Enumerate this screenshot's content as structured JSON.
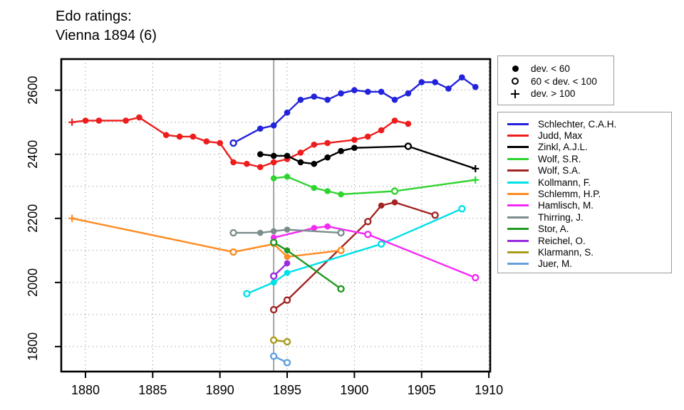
{
  "title": {
    "line1": "Edo ratings:",
    "line2": "Vienna 1894 (6)"
  },
  "chart_data": {
    "type": "line",
    "title": "Edo ratings: Vienna 1894 (6)",
    "xlabel": "",
    "ylabel": "",
    "xlim": [
      1878.2,
      1910.1
    ],
    "ylim": [
      1722,
      2697
    ],
    "x_ticks": [
      1880,
      1885,
      1890,
      1895,
      1900,
      1905,
      1910
    ],
    "y_ticks": [
      1800,
      2000,
      2200,
      2400,
      2600
    ],
    "x_gridlines": [
      1880,
      1885,
      1890,
      1895,
      1900,
      1905,
      1910
    ],
    "y_gridlines": [
      1800,
      1900,
      2000,
      2100,
      2200,
      2300,
      2400,
      2500,
      2600
    ],
    "grid": "dotted",
    "event_line": {
      "x": 1894,
      "color": "#9a9a9a"
    },
    "legend_position": "right-outside",
    "marker_legend": [
      {
        "marker": "filled",
        "label": "dev. < 60"
      },
      {
        "marker": "open",
        "label": "60 < dev. < 100"
      },
      {
        "marker": "plus",
        "label": "dev. > 100"
      }
    ],
    "series": [
      {
        "name": "Schlechter, C.A.H.",
        "color": "#2222dc",
        "points": [
          {
            "x": 1891,
            "y": 2435,
            "m": "open"
          },
          {
            "x": 1893,
            "y": 2480,
            "m": "filled"
          },
          {
            "x": 1894,
            "y": 2490,
            "m": "filled"
          },
          {
            "x": 1895,
            "y": 2530,
            "m": "filled"
          },
          {
            "x": 1896,
            "y": 2570,
            "m": "filled"
          },
          {
            "x": 1897,
            "y": 2580,
            "m": "filled"
          },
          {
            "x": 1898,
            "y": 2570,
            "m": "filled"
          },
          {
            "x": 1899,
            "y": 2590,
            "m": "filled"
          },
          {
            "x": 1900,
            "y": 2600,
            "m": "filled"
          },
          {
            "x": 1901,
            "y": 2595,
            "m": "filled"
          },
          {
            "x": 1902,
            "y": 2595,
            "m": "filled"
          },
          {
            "x": 1903,
            "y": 2570,
            "m": "filled"
          },
          {
            "x": 1904,
            "y": 2590,
            "m": "filled"
          },
          {
            "x": 1905,
            "y": 2625,
            "m": "filled"
          },
          {
            "x": 1906,
            "y": 2625,
            "m": "filled"
          },
          {
            "x": 1907,
            "y": 2605,
            "m": "filled"
          },
          {
            "x": 1908,
            "y": 2640,
            "m": "filled"
          },
          {
            "x": 1909,
            "y": 2610,
            "m": "filled"
          }
        ]
      },
      {
        "name": "Judd, Max",
        "color": "#ee1c1c",
        "points": [
          {
            "x": 1879,
            "y": 2500,
            "m": "plus"
          },
          {
            "x": 1880,
            "y": 2505,
            "m": "filled"
          },
          {
            "x": 1881,
            "y": 2505,
            "m": "filled"
          },
          {
            "x": 1883,
            "y": 2505,
            "m": "filled"
          },
          {
            "x": 1884,
            "y": 2515,
            "m": "filled"
          },
          {
            "x": 1886,
            "y": 2460,
            "m": "filled"
          },
          {
            "x": 1887,
            "y": 2455,
            "m": "filled"
          },
          {
            "x": 1888,
            "y": 2455,
            "m": "filled"
          },
          {
            "x": 1889,
            "y": 2440,
            "m": "filled"
          },
          {
            "x": 1890,
            "y": 2435,
            "m": "filled"
          },
          {
            "x": 1891,
            "y": 2375,
            "m": "filled"
          },
          {
            "x": 1892,
            "y": 2370,
            "m": "filled"
          },
          {
            "x": 1893,
            "y": 2360,
            "m": "filled"
          },
          {
            "x": 1894,
            "y": 2375,
            "m": "filled"
          },
          {
            "x": 1895,
            "y": 2385,
            "m": "filled"
          },
          {
            "x": 1896,
            "y": 2405,
            "m": "filled"
          },
          {
            "x": 1897,
            "y": 2430,
            "m": "filled"
          },
          {
            "x": 1898,
            "y": 2435,
            "m": "filled"
          },
          {
            "x": 1900,
            "y": 2445,
            "m": "filled"
          },
          {
            "x": 1901,
            "y": 2455,
            "m": "filled"
          },
          {
            "x": 1902,
            "y": 2475,
            "m": "filled"
          },
          {
            "x": 1903,
            "y": 2505,
            "m": "filled"
          },
          {
            "x": 1904,
            "y": 2495,
            "m": "filled"
          }
        ]
      },
      {
        "name": "Zinkl, A.J.L.",
        "color": "#000000",
        "points": [
          {
            "x": 1893,
            "y": 2400,
            "m": "filled"
          },
          {
            "x": 1894,
            "y": 2395,
            "m": "filled"
          },
          {
            "x": 1895,
            "y": 2395,
            "m": "filled"
          },
          {
            "x": 1896,
            "y": 2375,
            "m": "filled"
          },
          {
            "x": 1897,
            "y": 2370,
            "m": "filled"
          },
          {
            "x": 1898,
            "y": 2390,
            "m": "filled"
          },
          {
            "x": 1899,
            "y": 2410,
            "m": "filled"
          },
          {
            "x": 1900,
            "y": 2420,
            "m": "filled"
          },
          {
            "x": 1904,
            "y": 2425,
            "m": "open"
          },
          {
            "x": 1909,
            "y": 2355,
            "m": "plus"
          }
        ]
      },
      {
        "name": "Wolf, S.R.",
        "color": "#2fd42f",
        "points": [
          {
            "x": 1894,
            "y": 2325,
            "m": "filled"
          },
          {
            "x": 1895,
            "y": 2330,
            "m": "filled"
          },
          {
            "x": 1897,
            "y": 2295,
            "m": "filled"
          },
          {
            "x": 1898,
            "y": 2285,
            "m": "filled"
          },
          {
            "x": 1899,
            "y": 2275,
            "m": "filled"
          },
          {
            "x": 1903,
            "y": 2285,
            "m": "open"
          },
          {
            "x": 1909,
            "y": 2320,
            "m": "plus"
          }
        ]
      },
      {
        "name": "Wolf, S.A.",
        "color": "#a22424",
        "points": [
          {
            "x": 1894,
            "y": 1915,
            "m": "open"
          },
          {
            "x": 1895,
            "y": 1945,
            "m": "open"
          },
          {
            "x": 1901,
            "y": 2190,
            "m": "open"
          },
          {
            "x": 1902,
            "y": 2240,
            "m": "filled"
          },
          {
            "x": 1903,
            "y": 2250,
            "m": "filled"
          },
          {
            "x": 1906,
            "y": 2210,
            "m": "open"
          }
        ]
      },
      {
        "name": "Kollmann, F.",
        "color": "#00e0e8",
        "points": [
          {
            "x": 1892,
            "y": 1965,
            "m": "open"
          },
          {
            "x": 1894,
            "y": 2000,
            "m": "filled"
          },
          {
            "x": 1895,
            "y": 2030,
            "m": "filled"
          },
          {
            "x": 1902,
            "y": 2120,
            "m": "open"
          },
          {
            "x": 1908,
            "y": 2230,
            "m": "open"
          }
        ]
      },
      {
        "name": "Schlemm, H.P.",
        "color": "#ff8a1e",
        "points": [
          {
            "x": 1879,
            "y": 2200,
            "m": "plus"
          },
          {
            "x": 1891,
            "y": 2095,
            "m": "open"
          },
          {
            "x": 1894,
            "y": 2120,
            "m": "filled"
          },
          {
            "x": 1895,
            "y": 2080,
            "m": "filled"
          },
          {
            "x": 1899,
            "y": 2100,
            "m": "open"
          }
        ]
      },
      {
        "name": "Hamlisch, M.",
        "color": "#f42af4",
        "points": [
          {
            "x": 1894,
            "y": 2140,
            "m": "filled"
          },
          {
            "x": 1897,
            "y": 2170,
            "m": "filled"
          },
          {
            "x": 1898,
            "y": 2175,
            "m": "filled"
          },
          {
            "x": 1901,
            "y": 2150,
            "m": "open"
          },
          {
            "x": 1909,
            "y": 2015,
            "m": "open"
          }
        ]
      },
      {
        "name": "Thirring, J.",
        "color": "#7c8c8c",
        "points": [
          {
            "x": 1891,
            "y": 2155,
            "m": "open"
          },
          {
            "x": 1893,
            "y": 2155,
            "m": "filled"
          },
          {
            "x": 1894,
            "y": 2160,
            "m": "filled"
          },
          {
            "x": 1895,
            "y": 2165,
            "m": "filled"
          },
          {
            "x": 1899,
            "y": 2155,
            "m": "open"
          }
        ]
      },
      {
        "name": "Stor, A.",
        "color": "#1f9922",
        "points": [
          {
            "x": 1894,
            "y": 2125,
            "m": "open"
          },
          {
            "x": 1895,
            "y": 2100,
            "m": "filled"
          },
          {
            "x": 1899,
            "y": 1980,
            "m": "open"
          }
        ]
      },
      {
        "name": "Reichel, O.",
        "color": "#992add",
        "points": [
          {
            "x": 1894,
            "y": 2020,
            "m": "open"
          },
          {
            "x": 1895,
            "y": 2060,
            "m": "filled"
          }
        ]
      },
      {
        "name": "Klarmann, S.",
        "color": "#a89b1c",
        "points": [
          {
            "x": 1894,
            "y": 1820,
            "m": "open"
          },
          {
            "x": 1895,
            "y": 1815,
            "m": "open"
          }
        ]
      },
      {
        "name": "Juer, M.",
        "color": "#64a0dc",
        "points": [
          {
            "x": 1894,
            "y": 1770,
            "m": "open"
          },
          {
            "x": 1895,
            "y": 1750,
            "m": "open"
          }
        ]
      }
    ]
  }
}
